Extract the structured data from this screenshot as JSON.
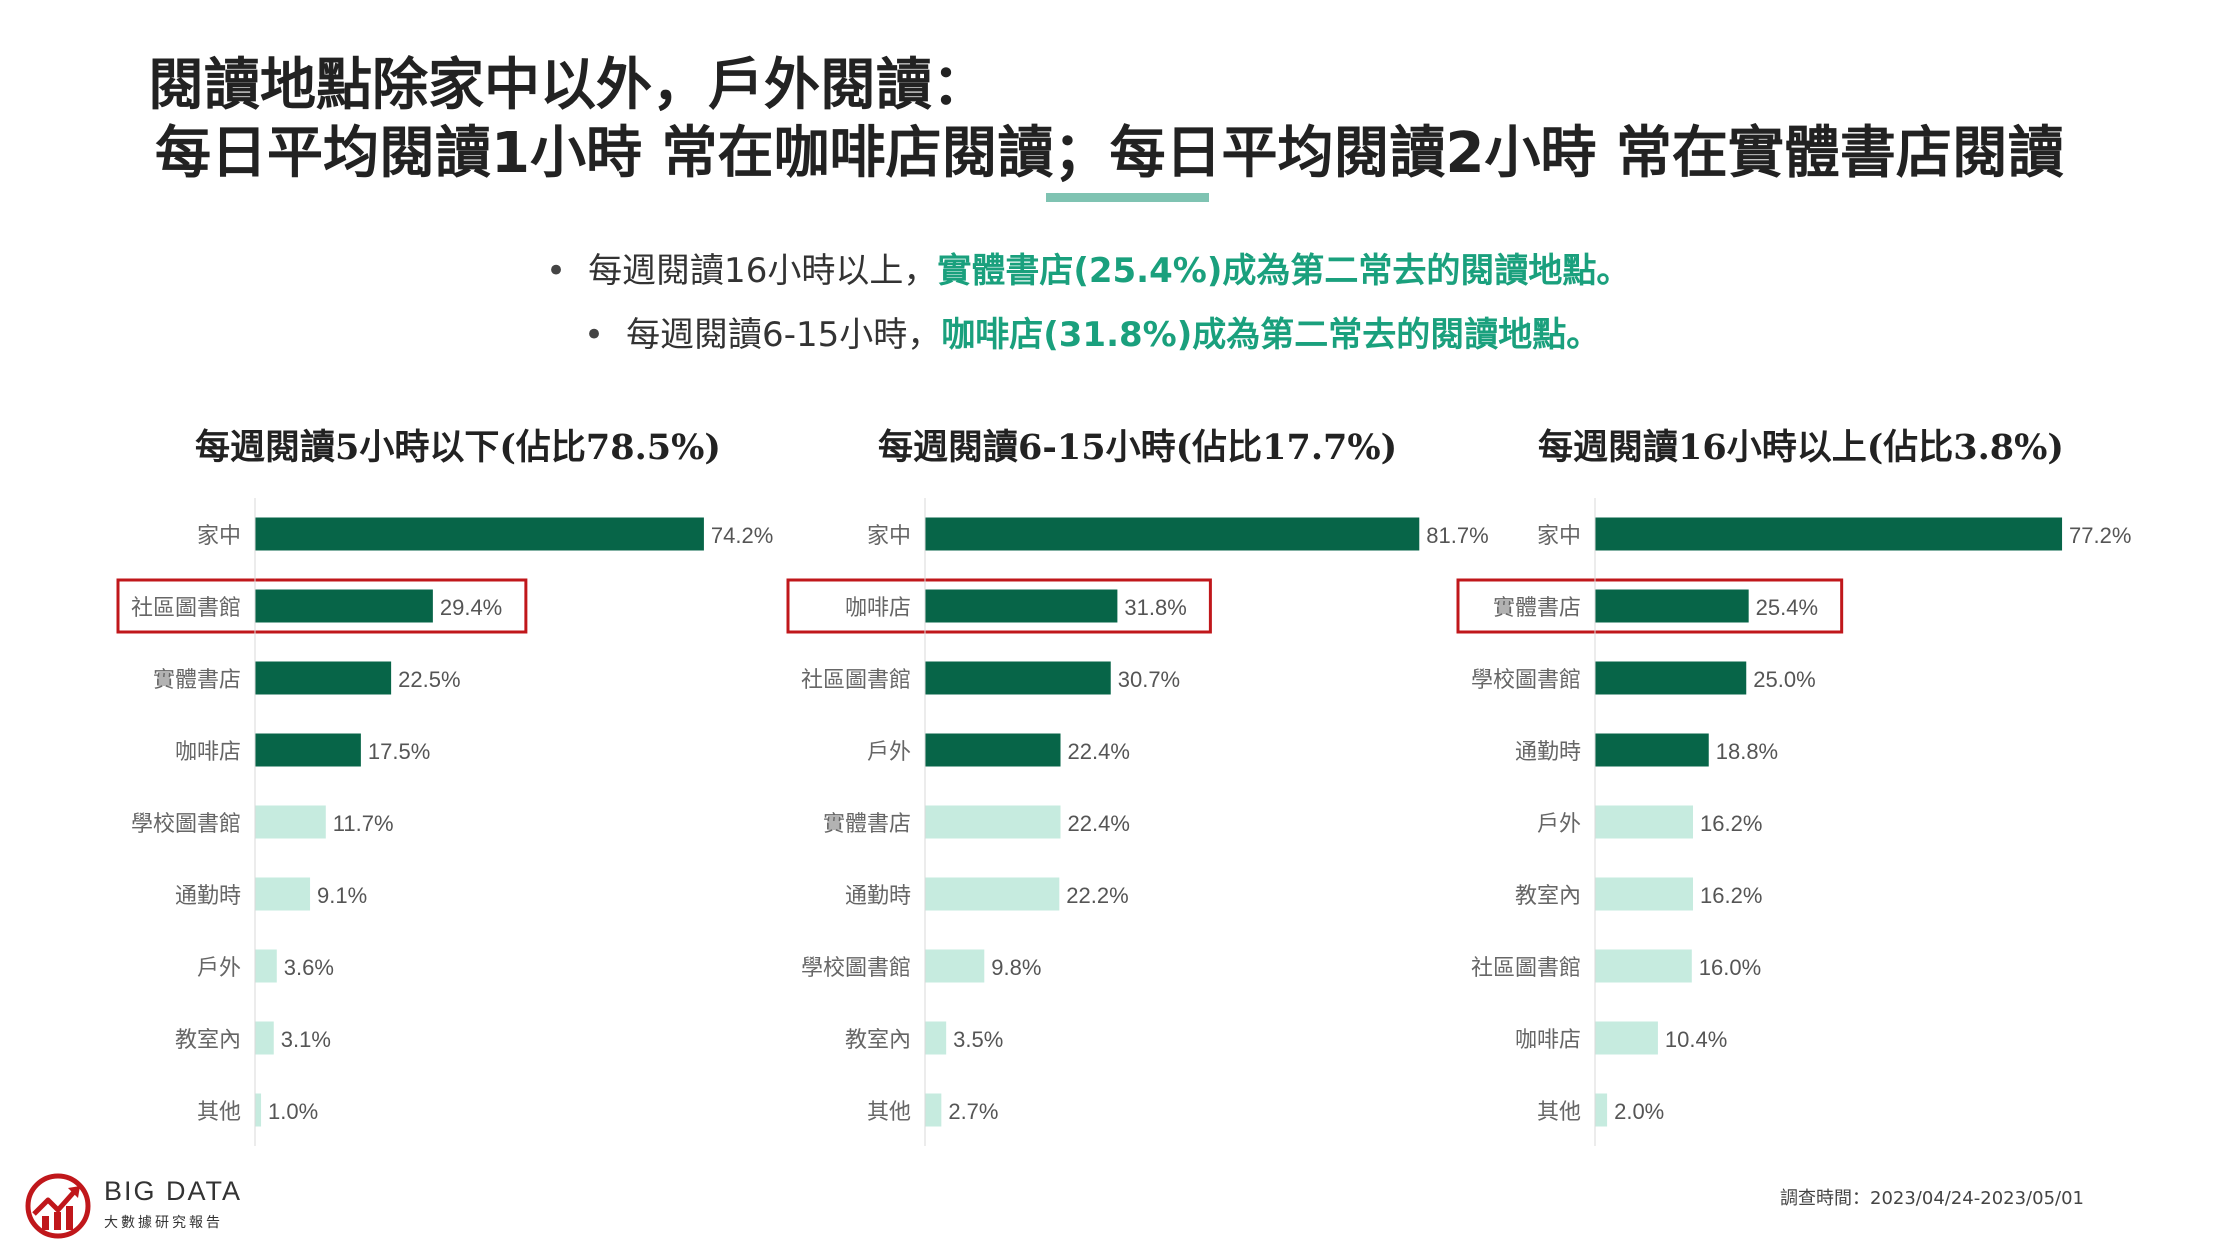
{
  "header": {
    "title_line1": "閱讀地點除家中以外，戶外閱讀：",
    "title_line2": "每日平均閱讀1小時  常在咖啡店閱讀；每日平均閱讀2小時  常在實體書店閱讀"
  },
  "bullets": [
    {
      "dot": "•",
      "text": "每週閱讀16小時以上，",
      "highlight": "實體書店(25.4%)成為第二常去的閱讀地點。"
    },
    {
      "dot": "•",
      "text": "每週閱讀6-15小時，",
      "highlight": "咖啡店(31.8%)成為第二常去的閱讀地點。"
    }
  ],
  "colors": {
    "dark_bar": "#076548",
    "light_bar": "#c6ebdf",
    "highlight_box": "#c0171b",
    "highlight_text": "#1aa07d",
    "underline": "#7fc3b2"
  },
  "chart_data": [
    {
      "type": "bar",
      "orientation": "horizontal",
      "title": "每週閱讀5小時以下(佔比78.5%)",
      "categories": [
        "家中",
        "社區圖書館",
        "實體書店",
        "咖啡店",
        "學校圖書館",
        "通勤時",
        "戶外",
        "教室內",
        "其他"
      ],
      "values": [
        74.2,
        29.4,
        22.5,
        17.5,
        11.7,
        9.1,
        3.6,
        3.1,
        1.0
      ],
      "labels": [
        "74.2%",
        "29.4%",
        "22.5%",
        "17.5%",
        "11.7%",
        "9.1%",
        "3.6%",
        "3.1%",
        "1.0%"
      ],
      "dark_count": 4,
      "highlight_index": 1,
      "xlim": [
        0,
        100
      ],
      "grid": false,
      "legend": "none"
    },
    {
      "type": "bar",
      "orientation": "horizontal",
      "title": "每週閱讀6-15小時(佔比17.7%)",
      "categories": [
        "家中",
        "咖啡店",
        "社區圖書館",
        "戶外",
        "實體書店",
        "通勤時",
        "學校圖書館",
        "教室內",
        "其他"
      ],
      "values": [
        81.7,
        31.8,
        30.7,
        22.4,
        22.4,
        22.2,
        9.8,
        3.5,
        2.7
      ],
      "labels": [
        "81.7%",
        "31.8%",
        "30.7%",
        "22.4%",
        "22.4%",
        "22.2%",
        "9.8%",
        "3.5%",
        "2.7%"
      ],
      "dark_count": 4,
      "highlight_index": 1,
      "xlim": [
        0,
        100
      ],
      "grid": false,
      "legend": "none"
    },
    {
      "type": "bar",
      "orientation": "horizontal",
      "title": "每週閱讀16小時以上(佔比3.8%)",
      "categories": [
        "家中",
        "實體書店",
        "學校圖書館",
        "通勤時",
        "戶外",
        "教室內",
        "社區圖書館",
        "咖啡店",
        "其他"
      ],
      "values": [
        77.2,
        25.4,
        25.0,
        18.8,
        16.2,
        16.2,
        16.0,
        10.4,
        2.0
      ],
      "labels": [
        "77.2%",
        "25.4%",
        "25.0%",
        "18.8%",
        "16.2%",
        "16.2%",
        "16.0%",
        "10.4%",
        "2.0%"
      ],
      "dark_count": 4,
      "highlight_index": 1,
      "xlim": [
        0,
        100
      ],
      "grid": false,
      "legend": "none"
    }
  ],
  "footer": {
    "logo_icon": "big-data-logo-icon",
    "logo_text": "BIG DATA",
    "logo_subtext": "大數據研究報告",
    "survey_date": "調查時間：2023/04/24-2023/05/01"
  }
}
